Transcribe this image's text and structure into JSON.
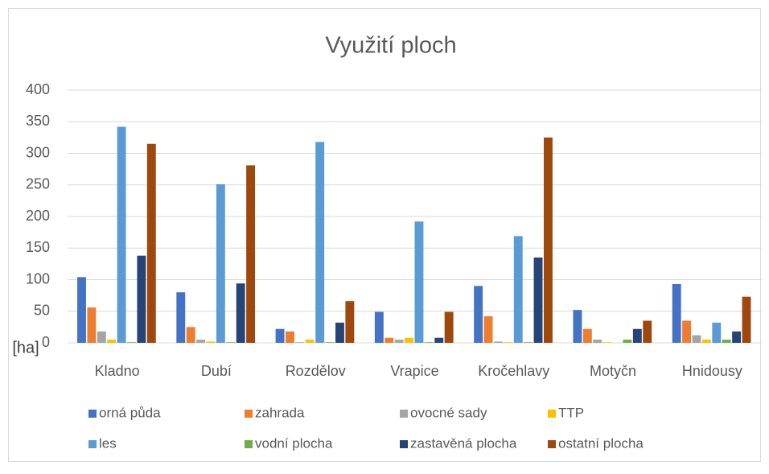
{
  "chart_data": {
    "type": "bar",
    "title": "Využití ploch",
    "y_label": "[ha]",
    "categories": [
      "Kladno",
      "Dubí",
      "Rozdělov",
      "Vrapice",
      "Kročehlavy",
      "Motyčn",
      "Hnidousy"
    ],
    "series": [
      {
        "name": "orná půda",
        "color": "#4472c4",
        "values": [
          104,
          80,
          22,
          49,
          90,
          52,
          93
        ]
      },
      {
        "name": "zahrada",
        "color": "#ed7d31",
        "values": [
          56,
          25,
          18,
          8,
          42,
          22,
          35
        ]
      },
      {
        "name": "ovocné sady",
        "color": "#a5a5a5",
        "values": [
          18,
          5,
          1,
          5,
          2,
          5,
          12
        ]
      },
      {
        "name": "TTP",
        "color": "#ffc000",
        "values": [
          5,
          2,
          5,
          8,
          1,
          1,
          5
        ]
      },
      {
        "name": "les",
        "color": "#5b9bd5",
        "values": [
          342,
          251,
          318,
          192,
          169,
          0,
          32
        ]
      },
      {
        "name": "vodní plocha",
        "color": "#70ad47",
        "values": [
          1,
          1,
          1,
          1,
          1,
          5,
          5
        ]
      },
      {
        "name": "zastavěná plocha",
        "color": "#264478",
        "values": [
          138,
          94,
          32,
          8,
          135,
          22,
          18
        ]
      },
      {
        "name": "ostatní plocha",
        "color": "#9e480e",
        "values": [
          315,
          281,
          66,
          49,
          325,
          35,
          73
        ]
      }
    ],
    "ylim": [
      0,
      400
    ],
    "yticks": [
      0,
      50,
      100,
      150,
      200,
      250,
      300,
      350,
      400
    ],
    "grid": true,
    "legend": "bottom"
  }
}
